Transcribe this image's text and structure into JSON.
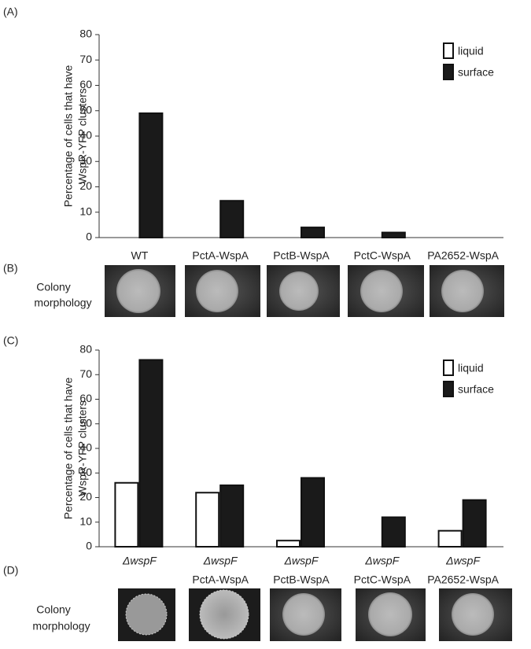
{
  "panel_labels": [
    "(A)",
    "(B)",
    "(C)",
    "(D)"
  ],
  "colony_label": [
    "Colony",
    "morphology"
  ],
  "chart_data": [
    {
      "type": "bar",
      "y_label": [
        "Percentage of cells that have",
        "WspR-YFP clusters"
      ],
      "categories": [
        "WT",
        "PctA-WspA",
        "PctB-WspA",
        "PctC-WspA",
        "PA2652-WspA"
      ],
      "series": [
        {
          "name": "liquid",
          "color": "#ffffff",
          "values": [
            0,
            0,
            0,
            0,
            0
          ]
        },
        {
          "name": "surface",
          "color": "#1a1a1a",
          "values": [
            49,
            14.5,
            4,
            2,
            0
          ]
        }
      ],
      "ylim": [
        0,
        80
      ],
      "yticks": [
        0,
        10,
        20,
        30,
        40,
        50,
        60,
        70,
        80
      ]
    },
    {
      "type": "bar",
      "y_label": [
        "Percentage of cells that have",
        "WspR-YFP clusters"
      ],
      "categories": [
        "ΔwspF",
        "ΔwspF",
        "ΔwspF",
        "ΔwspF",
        "ΔwspF"
      ],
      "subcategories": [
        null,
        "PctA-WspA",
        "PctB-WspA",
        "PctC-WspA",
        "PA2652-WspA"
      ],
      "series": [
        {
          "name": "liquid",
          "color": "#ffffff",
          "values": [
            26,
            22,
            2.5,
            0,
            6.5
          ]
        },
        {
          "name": "surface",
          "color": "#1a1a1a",
          "values": [
            76,
            25,
            28,
            12,
            19
          ]
        }
      ],
      "ylim": [
        0,
        80
      ],
      "yticks": [
        0,
        10,
        20,
        30,
        40,
        50,
        60,
        70,
        80
      ]
    }
  ]
}
